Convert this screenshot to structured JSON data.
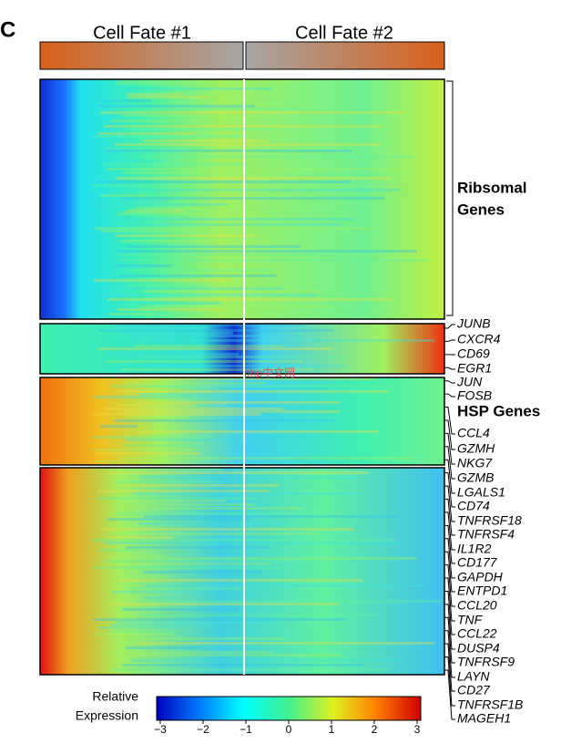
{
  "panel_label": "C",
  "header": {
    "left": "Cell Fate #1",
    "right": "Cell Fate #2"
  },
  "groups": {
    "ribosomal": [
      "Ribsomal",
      "Genes"
    ],
    "hsp": "HSP Genes"
  },
  "genes": [
    "JUNB",
    "CXCR4",
    "CD69",
    "EGR1",
    "JUN",
    "FOSB",
    "CCL4",
    "GZMH",
    "NKG7",
    "GZMB",
    "LGALS1",
    "CD74",
    "TNFRSF18",
    "TNFRSF4",
    "IL1R2",
    "CD177",
    "GAPDH",
    "ENTPD1",
    "CCL20",
    "TNF",
    "CCL22",
    "DUSP4",
    "TNFRSF9",
    "LAYN",
    "CD27",
    "TNFRSF1B",
    "MAGEH1"
  ],
  "watermark": "php中文网",
  "colorbar": {
    "title": [
      "Relative",
      "Expression"
    ],
    "lim": [
      -3,
      3
    ],
    "ticks": [
      {
        "value": -3,
        "label": "−3"
      },
      {
        "value": -2,
        "label": "−2"
      },
      {
        "value": -1,
        "label": "−1"
      },
      0,
      1,
      2,
      3
    ]
  }
}
